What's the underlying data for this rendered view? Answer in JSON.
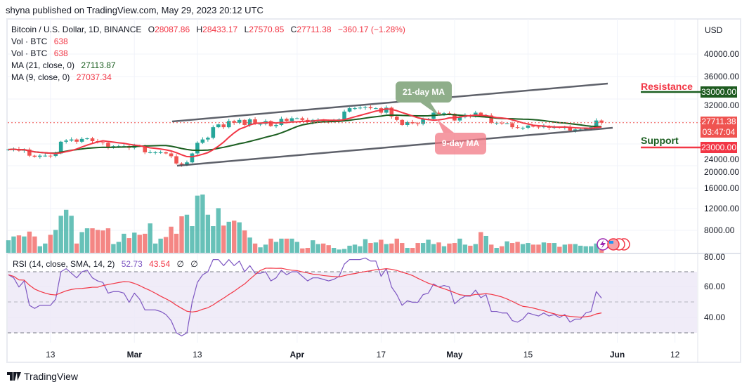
{
  "publisher_line": "shyna published on TradingView.com, May 29, 2023 20:12 UTC",
  "legend": {
    "symbol": "Bitcoin / U.S. Dollar, 1D, BINANCE",
    "o_label": "O",
    "open": "28087.86",
    "h_label": "H",
    "high": "28433.17",
    "l_label": "L",
    "low": "27570.85",
    "c_label": "C",
    "close": "27711.38",
    "change": "−360.17 (−1.28%)",
    "vol1_label": "Vol · BTC",
    "vol1_value": "638",
    "vol2_label": "Vol · BTC",
    "vol2_value": "638",
    "ma21_label": "MA (21, close, 0)",
    "ma21_value": "27113.87",
    "ma9_label": "MA (9, close, 0)",
    "ma9_value": "27037.34"
  },
  "rsi_legend": {
    "label": "RSI (14, close, SMA, 14, 2)",
    "rsi": "52.73",
    "sma": "43.54",
    "x1": "∅",
    "x2": "∅"
  },
  "price_axis": {
    "currency": "USD",
    "labels": [
      "40000.00",
      "36000.00",
      "32000.00",
      "24000.00",
      "20000.00",
      "16000.00",
      "12000.00",
      "8000.00"
    ],
    "rsi_labels": [
      "80.00",
      "60.00",
      "40.00"
    ]
  },
  "last_price": {
    "value": "27711.38",
    "countdown": "03:47:04"
  },
  "levels": {
    "resistance": {
      "label": "Resistance",
      "value": "33000.00"
    },
    "support": {
      "label": "Support",
      "value": "23000.00"
    }
  },
  "annotations": {
    "ma21": "21-day MA",
    "ma9": "9-day MA"
  },
  "date_axis": [
    {
      "label": "13",
      "bold": false
    },
    {
      "label": "Mar",
      "bold": true
    },
    {
      "label": "13",
      "bold": false
    },
    {
      "label": "Apr",
      "bold": true
    },
    {
      "label": "17",
      "bold": false
    },
    {
      "label": "May",
      "bold": true
    },
    {
      "label": "15",
      "bold": false
    },
    {
      "label": "Jun",
      "bold": true
    },
    {
      "label": "12",
      "bold": false
    }
  ],
  "footer": {
    "brand": "TradingView"
  },
  "colors": {
    "up": "#26a69a",
    "down": "#ef5350",
    "ma9": "#f23645",
    "ma21": "#1b5e20",
    "rsi": "#7e57c2",
    "rsi_ma": "#f23645"
  },
  "chart_data": {
    "type": "candlestick",
    "start_date": "2023-02-05",
    "end_date": "2023-05-29",
    "interval": "1D",
    "ylim": [
      8000,
      40000
    ],
    "first_open": 22800,
    "closes": [
      22900,
      23000,
      22700,
      22900,
      21800,
      21600,
      21800,
      21800,
      21750,
      22200,
      24300,
      24500,
      24700,
      24300,
      24800,
      24900,
      24400,
      24200,
      24100,
      23200,
      23500,
      23500,
      23500,
      23200,
      23600,
      23500,
      22400,
      22400,
      22400,
      22400,
      22200,
      21700,
      20400,
      20200,
      20600,
      22200,
      24100,
      24700,
      25000,
      26900,
      27400,
      26900,
      28000,
      27700,
      28200,
      27300,
      28300,
      27500,
      27500,
      28000,
      27100,
      27300,
      28400,
      28000,
      28500,
      28500,
      28200,
      27800,
      28200,
      28200,
      28000,
      27900,
      28000,
      28300,
      29700,
      30300,
      30300,
      30400,
      30500,
      30300,
      30300,
      29500,
      30400,
      28800,
      28200,
      27300,
      27800,
      27600,
      27500,
      28300,
      28400,
      29500,
      29300,
      29400,
      29300,
      28100,
      28700,
      29000,
      28900,
      29500,
      28900,
      29000,
      27700,
      27700,
      27600,
      27600,
      26900,
      26800,
      26800,
      27200,
      27000,
      26900,
      27100,
      26800,
      26900,
      26800,
      26900,
      26300,
      26500,
      26500,
      26700,
      26900,
      28100,
      27711.38
    ],
    "volumes": [
      2300,
      3000,
      3200,
      3000,
      3900,
      3000,
      1200,
      1700,
      3300,
      4200,
      6800,
      7900,
      6800,
      1700,
      3800,
      4500,
      4500,
      4200,
      4100,
      4500,
      1600,
      2000,
      3500,
      2700,
      3700,
      3300,
      3500,
      5400,
      1700,
      2600,
      2900,
      4800,
      3500,
      6700,
      7000,
      4900,
      10500,
      10700,
      7000,
      4900,
      8200,
      5000,
      5700,
      5900,
      5600,
      4100,
      2800,
      1700,
      1000,
      1500,
      2600,
      2000,
      2600,
      2600,
      2600,
      2000,
      800,
      900,
      2300,
      1600,
      1700,
      1400,
      900,
      600,
      700,
      1300,
      1500,
      1200,
      2500,
      1800,
      1900,
      2400,
      1600,
      1700,
      2600,
      1800,
      900,
      900,
      1800,
      1800,
      2400,
      1600,
      1900,
      1200,
      1700,
      1800,
      2600,
      1500,
      1300,
      1600,
      3800,
      3100,
      1500,
      900,
      1200,
      2100,
      1800,
      2000,
      1600,
      1800,
      1500,
      1500,
      1900,
      1800,
      1800,
      1100,
      1500,
      1600,
      1600,
      1300,
      1200,
      1200,
      1700,
      638
    ],
    "rsi": [
      68,
      66,
      60,
      64,
      48,
      46,
      48,
      48,
      48,
      52,
      70,
      72,
      69,
      66,
      70,
      71,
      66,
      64,
      63,
      56,
      57,
      57,
      56,
      50,
      56,
      52,
      45,
      45,
      45,
      44,
      42,
      38,
      30,
      28,
      30,
      50,
      63,
      68,
      70,
      78,
      78,
      74,
      78,
      74,
      77,
      70,
      74,
      69,
      69,
      70,
      64,
      66,
      71,
      68,
      70,
      70,
      67,
      64,
      66,
      66,
      65,
      64,
      65,
      67,
      75,
      78,
      78,
      78,
      79,
      77,
      77,
      67,
      72,
      60,
      55,
      48,
      51,
      50,
      50,
      55,
      56,
      62,
      60,
      61,
      60,
      49,
      52,
      54,
      54,
      58,
      53,
      55,
      44,
      44,
      43,
      43,
      38,
      37,
      39,
      43,
      42,
      41,
      43,
      41,
      42,
      40,
      42,
      37,
      39,
      39,
      43,
      44,
      57,
      52.73
    ],
    "rsi_bands": [
      30,
      50,
      70
    ],
    "rsi_ylim": [
      20,
      80
    ],
    "ma_periods": [
      9,
      21
    ],
    "resistance": 33000,
    "support": 23000
  }
}
